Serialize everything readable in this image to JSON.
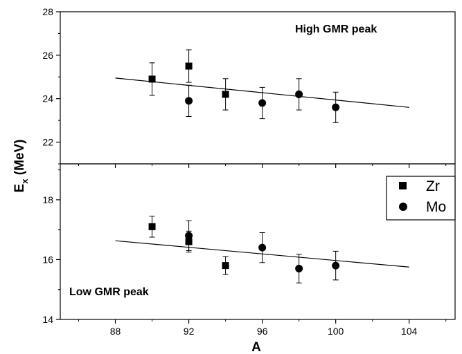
{
  "chart_data": [
    {
      "type": "scatter",
      "panel": "top",
      "annotation": "High GMR peak",
      "xlim": [
        85,
        106.5
      ],
      "ylim": [
        21,
        28
      ],
      "yticks": [
        22,
        24,
        26,
        28
      ],
      "series": [
        {
          "name": "Zr",
          "marker": "square",
          "x": [
            90,
            92,
            94
          ],
          "y": [
            24.9,
            25.5,
            24.2
          ],
          "err": [
            0.75,
            0.75,
            0.72
          ]
        },
        {
          "name": "Mo",
          "marker": "circle",
          "x": [
            92,
            96,
            98,
            100
          ],
          "y": [
            23.9,
            23.8,
            24.2,
            23.6
          ],
          "err": [
            0.72,
            0.72,
            0.72,
            0.7
          ]
        }
      ],
      "fit_line": {
        "x": [
          88,
          104
        ],
        "y": [
          24.95,
          23.6
        ]
      }
    },
    {
      "type": "scatter",
      "panel": "bottom",
      "annotation": "Low GMR peak",
      "xlim": [
        85,
        106.5
      ],
      "ylim": [
        14,
        19.2
      ],
      "yticks": [
        14,
        16,
        18
      ],
      "series": [
        {
          "name": "Zr",
          "marker": "square",
          "x": [
            90,
            92,
            94
          ],
          "y": [
            17.1,
            16.6,
            15.8
          ],
          "err": [
            0.35,
            0.35,
            0.3
          ]
        },
        {
          "name": "Mo",
          "marker": "circle",
          "x": [
            92,
            96,
            98,
            100
          ],
          "y": [
            16.8,
            16.4,
            15.7,
            15.8
          ],
          "err": [
            0.5,
            0.5,
            0.48,
            0.48
          ]
        }
      ],
      "fit_line": {
        "x": [
          88,
          104
        ],
        "y": [
          16.63,
          15.75
        ]
      }
    }
  ],
  "axes": {
    "xlabel": "A",
    "ylabel_main": "E",
    "ylabel_sub": "x",
    "ylabel_unit": " (MeV)",
    "xticks": [
      88,
      92,
      96,
      100,
      104
    ]
  },
  "legend": {
    "placement": "right-of-bottom-panel",
    "entries": [
      {
        "name": "Zr",
        "marker": "square"
      },
      {
        "name": "Mo",
        "marker": "circle"
      }
    ]
  },
  "colors": {
    "ink": "#000000",
    "background": "#ffffff"
  }
}
